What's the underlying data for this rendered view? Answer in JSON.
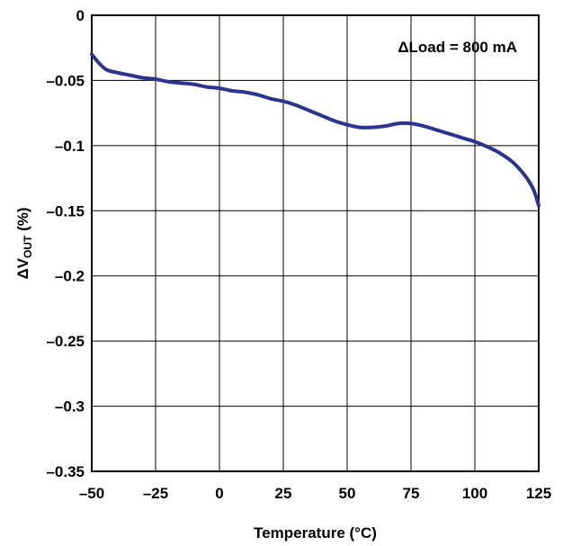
{
  "chart_data": {
    "type": "line",
    "title": "",
    "xlabel": "Temperature (°C)",
    "ylabel": {
      "prefix": "ΔV",
      "subscript": "OUT",
      "suffix": " (%)"
    },
    "annotation": "ΔLoad = 800 mA",
    "xlim": [
      -50,
      125
    ],
    "ylim": [
      -0.35,
      0
    ],
    "x_ticks": [
      {
        "value": -50,
        "label": "–50"
      },
      {
        "value": -25,
        "label": "–25"
      },
      {
        "value": 0,
        "label": "0"
      },
      {
        "value": 25,
        "label": "25"
      },
      {
        "value": 50,
        "label": "50"
      },
      {
        "value": 75,
        "label": "75"
      },
      {
        "value": 100,
        "label": "100"
      },
      {
        "value": 125,
        "label": "125"
      }
    ],
    "y_ticks": [
      {
        "value": 0,
        "label": "0"
      },
      {
        "value": -0.05,
        "label": "–0.05"
      },
      {
        "value": -0.1,
        "label": "–0.1"
      },
      {
        "value": -0.15,
        "label": "–0.15"
      },
      {
        "value": -0.2,
        "label": "–0.2"
      },
      {
        "value": -0.25,
        "label": "–0.25"
      },
      {
        "value": -0.3,
        "label": "–0.3"
      },
      {
        "value": -0.35,
        "label": "–0.35"
      }
    ],
    "grid": true,
    "line_color": "#2b3590",
    "series": [
      {
        "x": [
          -50,
          -47,
          -44,
          -40,
          -35,
          -30,
          -25,
          -20,
          -15,
          -10,
          -5,
          0,
          5,
          10,
          15,
          20,
          25,
          30,
          35,
          40,
          45,
          50,
          55,
          60,
          65,
          70,
          75,
          80,
          85,
          90,
          95,
          100,
          105,
          110,
          115,
          120,
          123,
          125
        ],
        "y": [
          -0.03,
          -0.037,
          -0.042,
          -0.044,
          -0.046,
          -0.048,
          -0.049,
          -0.051,
          -0.052,
          -0.053,
          -0.055,
          -0.056,
          -0.058,
          -0.059,
          -0.061,
          -0.064,
          -0.066,
          -0.069,
          -0.073,
          -0.077,
          -0.081,
          -0.084,
          -0.086,
          -0.086,
          -0.085,
          -0.083,
          -0.083,
          -0.085,
          -0.088,
          -0.091,
          -0.094,
          -0.097,
          -0.101,
          -0.106,
          -0.113,
          -0.124,
          -0.134,
          -0.146
        ]
      }
    ]
  }
}
